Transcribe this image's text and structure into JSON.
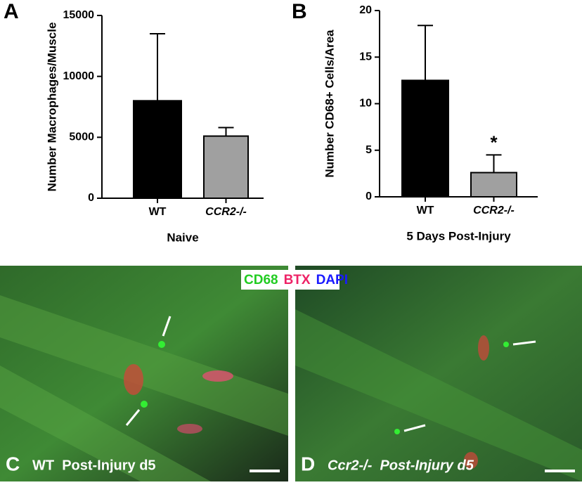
{
  "chart_data": [
    {
      "type": "bar",
      "panel": "A",
      "ylabel": "Number Macrophages/Muscle",
      "xlabel": "Naive",
      "categories": [
        "WT",
        "CCR2-/-"
      ],
      "values": [
        8000,
        5100
      ],
      "errors": [
        5500,
        700
      ],
      "colors": [
        "#000000",
        "#a0a0a0"
      ],
      "ylim": [
        0,
        15000
      ],
      "yticks": [
        0,
        5000,
        10000,
        15000
      ]
    },
    {
      "type": "bar",
      "panel": "B",
      "ylabel": "Number CD68+ Cells/Area",
      "xlabel": "5 Days Post-Injury",
      "categories": [
        "WT",
        "CCR2-/-"
      ],
      "values": [
        12.5,
        2.6
      ],
      "errors": [
        5.9,
        1.9
      ],
      "colors": [
        "#000000",
        "#a0a0a0"
      ],
      "ylim": [
        0,
        20
      ],
      "yticks": [
        0,
        5,
        10,
        15,
        20
      ],
      "annotations": [
        {
          "category": 1,
          "text": "*"
        }
      ]
    }
  ],
  "stain_legend": [
    {
      "text": "CD68",
      "color": "#22cc22"
    },
    {
      "text": "BTX",
      "color": "#ee2266"
    },
    {
      "text": "DAPI",
      "color": "#1a1aff"
    }
  ],
  "images": [
    {
      "panel": "C",
      "caption": "WT  Post-Injury d5"
    },
    {
      "panel": "D",
      "caption": "Ccr2-/-  Post-Injury d5"
    }
  ]
}
